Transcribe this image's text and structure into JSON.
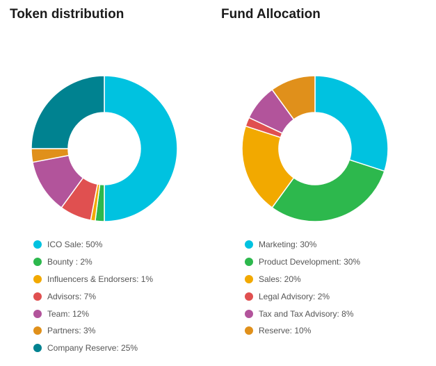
{
  "chart_data": [
    {
      "type": "pie",
      "title": "Token distribution",
      "legend_position": "bottom",
      "series": [
        {
          "label": "ICO Sale: 50%",
          "value": 50,
          "color": "#00c2e0"
        },
        {
          "label": "Bounty : 2%",
          "value": 2,
          "color": "#2db84d"
        },
        {
          "label": "Influencers & Endorsers: 1%",
          "value": 1,
          "color": "#f2a900"
        },
        {
          "label": "Advisors: 7%",
          "value": 7,
          "color": "#e05050"
        },
        {
          "label": "Team: 12%",
          "value": 12,
          "color": "#b2549b"
        },
        {
          "label": "Partners: 3%",
          "value": 3,
          "color": "#e0901b"
        },
        {
          "label": "Company Reserve: 25%",
          "value": 25,
          "color": "#008290"
        }
      ]
    },
    {
      "type": "pie",
      "title": "Fund Allocation",
      "legend_position": "bottom",
      "series": [
        {
          "label": "Marketing: 30%",
          "value": 30,
          "color": "#00c2e0"
        },
        {
          "label": "Product Development: 30%",
          "value": 30,
          "color": "#2db84d"
        },
        {
          "label": "Sales: 20%",
          "value": 20,
          "color": "#f2a900"
        },
        {
          "label": "Legal Advisory: 2%",
          "value": 2,
          "color": "#e05050"
        },
        {
          "label": "Tax and Tax Advisory: 8%",
          "value": 8,
          "color": "#b2549b"
        },
        {
          "label": "Reserve: 10%",
          "value": 10,
          "color": "#e0901b"
        }
      ]
    }
  ]
}
